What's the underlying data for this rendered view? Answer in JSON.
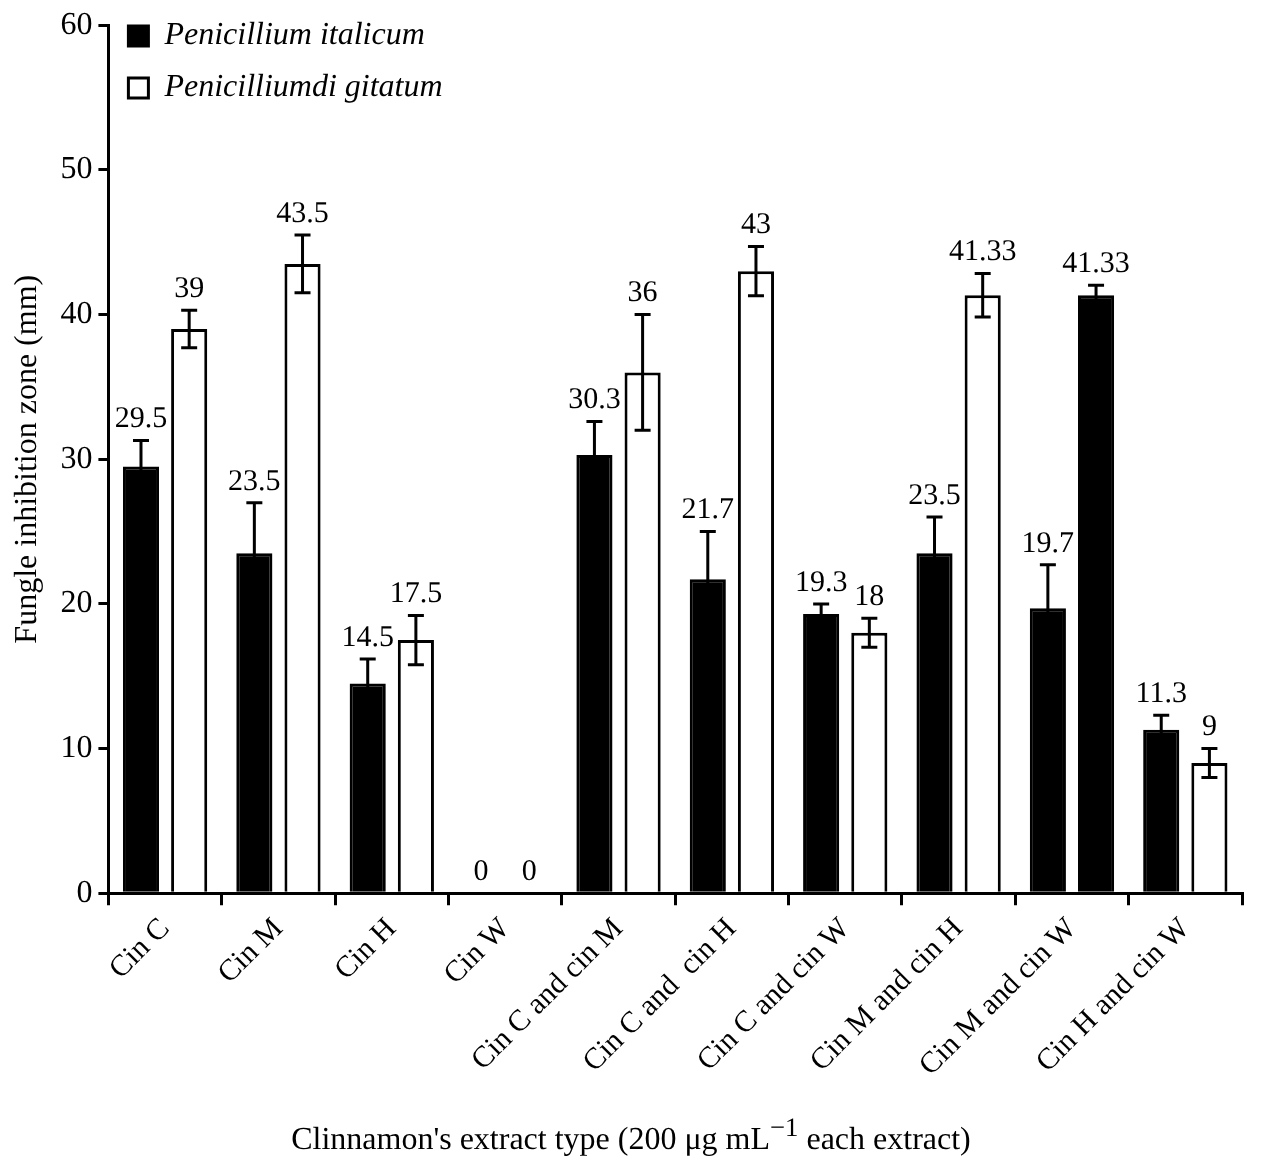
{
  "chart_data": {
    "type": "bar",
    "ylabel": "Fungle inhibition zone (mm)",
    "xlabel": "Clinnamon's extract type (200 μg mL$^{−1}$ each extract)",
    "categories": [
      "Cin C",
      "Cin M",
      "Cin H",
      "Cin W",
      "Cin C and cin M",
      "Cin C and  cin H",
      "Cin C and cin W",
      "Cin M and cin H",
      "Cin M and cin W",
      "Cin H and cin W"
    ],
    "series": [
      {
        "name": "Penicillium italicum",
        "color": "#000000",
        "values": [
          29.5,
          23.5,
          14.5,
          0,
          30.3,
          21.7,
          19.3,
          23.5,
          19.7,
          11.3
        ],
        "errors": [
          1.8,
          3.5,
          1.7,
          null,
          2.3,
          3.3,
          0.7,
          2.5,
          3,
          1
        ]
      },
      {
        "name": "Penicilliumdi gitatum",
        "color": "#ffffff",
        "colors": [
          "#ffffff",
          "#ffffff",
          "#ffffff",
          "#ffffff",
          "#ffffff",
          "#ffffff",
          "#ffffff",
          "#ffffff",
          "#000000",
          "#ffffff"
        ],
        "values": [
          39,
          43.5,
          17.5,
          0,
          36,
          43,
          18,
          41.33,
          41.33,
          9
        ],
        "errors": [
          1.3,
          2,
          1.7,
          null,
          4,
          1.7,
          1,
          1.5,
          0.7,
          1
        ]
      }
    ],
    "ylim": [
      0,
      60
    ],
    "yticks": [
      0,
      10,
      20,
      30,
      40,
      50,
      60
    ],
    "grid": false,
    "legend": "top left",
    "data_labels": true
  }
}
